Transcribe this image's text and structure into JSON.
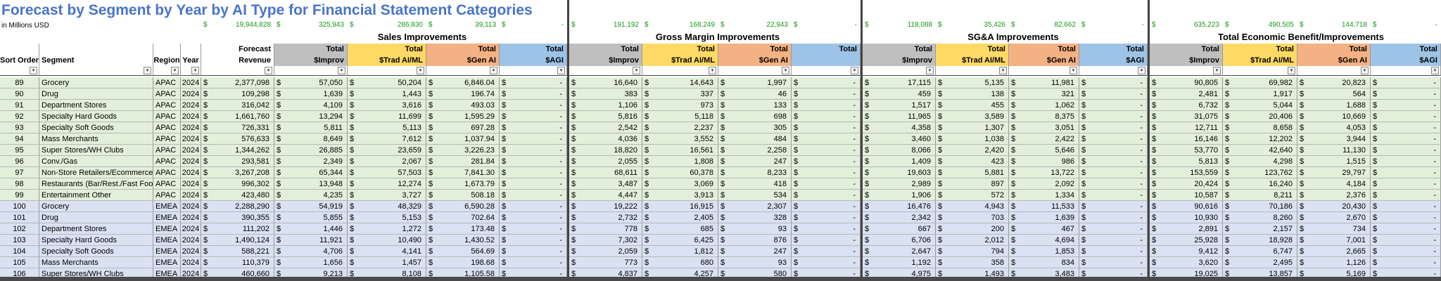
{
  "title": "Forecast by Segment by Year by AI Type for Financial Statement Categories",
  "units_label": "in Millions USD",
  "totals_row": [
    "19,944,828",
    "325,943",
    "286,830",
    "39,113",
    "-",
    "191,192",
    "168,249",
    "22,943",
    "-",
    "118,088",
    "35,426",
    "82,662",
    "-",
    "635,223",
    "490,505",
    "144,718",
    "-"
  ],
  "sections": {
    "sales": "Sales Improvements",
    "gross_margin": "Gross Margin Improvements",
    "sga": "SG&A Improvements",
    "teb": "Total Economic Benefit/Improvements"
  },
  "headers": {
    "sort_order": "Sort Order",
    "segment": "Segment",
    "region": "Region",
    "year": "Year",
    "forecast_line1": "Forecast",
    "forecast_line2": "Revenue",
    "total": "Total",
    "improv": "$Improv",
    "trad": "$Trad AI/ML",
    "gen": "$Gen AI",
    "agi": "$AGI"
  },
  "currency_symbol": "$",
  "dash": "-",
  "rows": [
    {
      "sort": "89",
      "segment": "Grocery",
      "region": "APAC",
      "year": "2024",
      "revenue": "2,377,098",
      "sales": [
        "57,050",
        "50,204",
        "6,846.04",
        "-"
      ],
      "gm": [
        "16,640",
        "14,643",
        "1,997",
        "-"
      ],
      "sga": [
        "17,115",
        "5,135",
        "11,981",
        "-"
      ],
      "teb": [
        "90,805",
        "69,982",
        "20,823",
        "-"
      ]
    },
    {
      "sort": "90",
      "segment": "Drug",
      "region": "APAC",
      "year": "2024",
      "revenue": "109,298",
      "sales": [
        "1,639",
        "1,443",
        "196.74",
        "-"
      ],
      "gm": [
        "383",
        "337",
        "46",
        "-"
      ],
      "sga": [
        "459",
        "138",
        "321",
        "-"
      ],
      "teb": [
        "2,481",
        "1,917",
        "564",
        "-"
      ]
    },
    {
      "sort": "91",
      "segment": "Department Stores",
      "region": "APAC",
      "year": "2024",
      "revenue": "316,042",
      "sales": [
        "4,109",
        "3,616",
        "493.03",
        "-"
      ],
      "gm": [
        "1,106",
        "973",
        "133",
        "-"
      ],
      "sga": [
        "1,517",
        "455",
        "1,062",
        "-"
      ],
      "teb": [
        "6,732",
        "5,044",
        "1,688",
        "-"
      ]
    },
    {
      "sort": "92",
      "segment": "Specialty Hard Goods",
      "region": "APAC",
      "year": "2024",
      "revenue": "1,661,760",
      "sales": [
        "13,294",
        "11,699",
        "1,595.29",
        "-"
      ],
      "gm": [
        "5,816",
        "5,118",
        "698",
        "-"
      ],
      "sga": [
        "11,965",
        "3,589",
        "8,375",
        "-"
      ],
      "teb": [
        "31,075",
        "20,406",
        "10,669",
        "-"
      ]
    },
    {
      "sort": "93",
      "segment": "Specialty Soft Goods",
      "region": "APAC",
      "year": "2024",
      "revenue": "726,331",
      "sales": [
        "5,811",
        "5,113",
        "697.28",
        "-"
      ],
      "gm": [
        "2,542",
        "2,237",
        "305",
        "-"
      ],
      "sga": [
        "4,358",
        "1,307",
        "3,051",
        "-"
      ],
      "teb": [
        "12,711",
        "8,658",
        "4,053",
        "-"
      ]
    },
    {
      "sort": "94",
      "segment": "Mass Merchants",
      "region": "APAC",
      "year": "2024",
      "revenue": "576,633",
      "sales": [
        "8,649",
        "7,612",
        "1,037.94",
        "-"
      ],
      "gm": [
        "4,036",
        "3,552",
        "484",
        "-"
      ],
      "sga": [
        "3,460",
        "1,038",
        "2,422",
        "-"
      ],
      "teb": [
        "16,146",
        "12,202",
        "3,944",
        "-"
      ]
    },
    {
      "sort": "95",
      "segment": "Super Stores/WH Clubs",
      "region": "APAC",
      "year": "2024",
      "revenue": "1,344,262",
      "sales": [
        "26,885",
        "23,659",
        "3,226.23",
        "-"
      ],
      "gm": [
        "18,820",
        "16,561",
        "2,258",
        "-"
      ],
      "sga": [
        "8,066",
        "2,420",
        "5,646",
        "-"
      ],
      "teb": [
        "53,770",
        "42,640",
        "11,130",
        "-"
      ]
    },
    {
      "sort": "96",
      "segment": "Conv./Gas",
      "region": "APAC",
      "year": "2024",
      "revenue": "293,581",
      "sales": [
        "2,349",
        "2,067",
        "281.84",
        "-"
      ],
      "gm": [
        "2,055",
        "1,808",
        "247",
        "-"
      ],
      "sga": [
        "1,409",
        "423",
        "986",
        "-"
      ],
      "teb": [
        "5,813",
        "4,298",
        "1,515",
        "-"
      ]
    },
    {
      "sort": "97",
      "segment": "Non-Store Retailers/Ecommerce",
      "region": "APAC",
      "year": "2024",
      "revenue": "3,267,208",
      "sales": [
        "65,344",
        "57,503",
        "7,841.30",
        "-"
      ],
      "gm": [
        "68,611",
        "60,378",
        "8,233",
        "-"
      ],
      "sga": [
        "19,603",
        "5,881",
        "13,722",
        "-"
      ],
      "teb": [
        "153,559",
        "123,762",
        "29,797",
        "-"
      ]
    },
    {
      "sort": "98",
      "segment": "Restaurants (Bar/Rest./Fast Food)",
      "region": "APAC",
      "year": "2024",
      "revenue": "996,302",
      "sales": [
        "13,948",
        "12,274",
        "1,673.79",
        "-"
      ],
      "gm": [
        "3,487",
        "3,069",
        "418",
        "-"
      ],
      "sga": [
        "2,989",
        "897",
        "2,092",
        "-"
      ],
      "teb": [
        "20,424",
        "16,240",
        "4,184",
        "-"
      ]
    },
    {
      "sort": "99",
      "segment": "Entertainment Other",
      "region": "APAC",
      "year": "2024",
      "revenue": "423,480",
      "sales": [
        "4,235",
        "3,727",
        "508.18",
        "-"
      ],
      "gm": [
        "4,447",
        "3,913",
        "534",
        "-"
      ],
      "sga": [
        "1,906",
        "572",
        "1,334",
        "-"
      ],
      "teb": [
        "10,587",
        "8,211",
        "2,376",
        "-"
      ]
    },
    {
      "sort": "100",
      "segment": "Grocery",
      "region": "EMEA",
      "year": "2024",
      "revenue": "2,288,290",
      "sales": [
        "54,919",
        "48,329",
        "6,590.28",
        "-"
      ],
      "gm": [
        "19,222",
        "16,915",
        "2,307",
        "-"
      ],
      "sga": [
        "16,476",
        "4,943",
        "11,533",
        "-"
      ],
      "teb": [
        "90,616",
        "70,186",
        "20,430",
        "-"
      ]
    },
    {
      "sort": "101",
      "segment": "Drug",
      "region": "EMEA",
      "year": "2024",
      "revenue": "390,355",
      "sales": [
        "5,855",
        "5,153",
        "702.64",
        "-"
      ],
      "gm": [
        "2,732",
        "2,405",
        "328",
        "-"
      ],
      "sga": [
        "2,342",
        "703",
        "1,639",
        "-"
      ],
      "teb": [
        "10,930",
        "8,260",
        "2,670",
        "-"
      ]
    },
    {
      "sort": "102",
      "segment": "Department Stores",
      "region": "EMEA",
      "year": "2024",
      "revenue": "111,202",
      "sales": [
        "1,446",
        "1,272",
        "173.48",
        "-"
      ],
      "gm": [
        "778",
        "685",
        "93",
        "-"
      ],
      "sga": [
        "667",
        "200",
        "467",
        "-"
      ],
      "teb": [
        "2,891",
        "2,157",
        "734",
        "-"
      ]
    },
    {
      "sort": "103",
      "segment": "Specialty Hard Goods",
      "region": "EMEA",
      "year": "2024",
      "revenue": "1,490,124",
      "sales": [
        "11,921",
        "10,490",
        "1,430.52",
        "-"
      ],
      "gm": [
        "7,302",
        "6,425",
        "876",
        "-"
      ],
      "sga": [
        "6,706",
        "2,012",
        "4,694",
        "-"
      ],
      "teb": [
        "25,928",
        "18,928",
        "7,001",
        "-"
      ]
    },
    {
      "sort": "104",
      "segment": "Specialty Soft Goods",
      "region": "EMEA",
      "year": "2024",
      "revenue": "588,221",
      "sales": [
        "4,706",
        "4,141",
        "564.69",
        "-"
      ],
      "gm": [
        "2,059",
        "1,812",
        "247",
        "-"
      ],
      "sga": [
        "2,647",
        "794",
        "1,853",
        "-"
      ],
      "teb": [
        "9,412",
        "6,747",
        "2,665",
        "-"
      ]
    },
    {
      "sort": "105",
      "segment": "Mass Merchants",
      "region": "EMEA",
      "year": "2024",
      "revenue": "110,379",
      "sales": [
        "1,656",
        "1,457",
        "198.68",
        "-"
      ],
      "gm": [
        "773",
        "680",
        "93",
        "-"
      ],
      "sga": [
        "1,192",
        "358",
        "834",
        "-"
      ],
      "teb": [
        "3,620",
        "2,495",
        "1,126",
        "-"
      ]
    },
    {
      "sort": "106",
      "segment": "Super Stores/WH Clubs",
      "region": "EMEA",
      "year": "2024",
      "revenue": "460,660",
      "sales": [
        "9,213",
        "8,108",
        "1,105.58",
        "-"
      ],
      "gm": [
        "4,837",
        "4,257",
        "580",
        "-"
      ],
      "sga": [
        "4,975",
        "1,493",
        "3,483",
        "-"
      ],
      "teb": [
        "19,025",
        "13,857",
        "5,169",
        "-"
      ]
    }
  ],
  "colors": {
    "title": "#4a74c9",
    "totals_text": "#169a16",
    "header_gray": "#bfbfbf",
    "header_yellow": "#ffd966",
    "header_orange": "#f4b183",
    "header_blue": "#9dc3e6",
    "apac_row": "#e2efda",
    "emea_row": "#d9e1f2"
  }
}
